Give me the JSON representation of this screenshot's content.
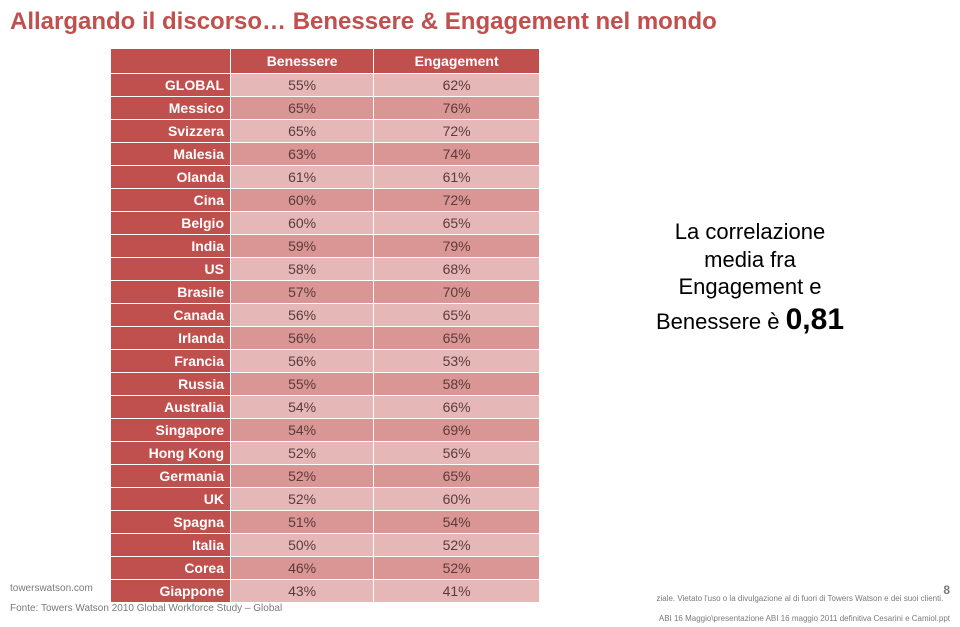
{
  "title": "Allargando il discorso… Benessere & Engagement nel mondo",
  "table": {
    "col1_header": "Benessere",
    "col2_header": "Engagement",
    "rows": [
      {
        "label": "GLOBAL",
        "v1": "55%",
        "v2": "62%"
      },
      {
        "label": "Messico",
        "v1": "65%",
        "v2": "76%"
      },
      {
        "label": "Svizzera",
        "v1": "65%",
        "v2": "72%"
      },
      {
        "label": "Malesia",
        "v1": "63%",
        "v2": "74%"
      },
      {
        "label": "Olanda",
        "v1": "61%",
        "v2": "61%"
      },
      {
        "label": "Cina",
        "v1": "60%",
        "v2": "72%"
      },
      {
        "label": "Belgio",
        "v1": "60%",
        "v2": "65%"
      },
      {
        "label": "India",
        "v1": "59%",
        "v2": "79%"
      },
      {
        "label": "US",
        "v1": "58%",
        "v2": "68%"
      },
      {
        "label": "Brasile",
        "v1": "57%",
        "v2": "70%"
      },
      {
        "label": "Canada",
        "v1": "56%",
        "v2": "65%"
      },
      {
        "label": "Irlanda",
        "v1": "56%",
        "v2": "65%"
      },
      {
        "label": "Francia",
        "v1": "56%",
        "v2": "53%"
      },
      {
        "label": "Russia",
        "v1": "55%",
        "v2": "58%"
      },
      {
        "label": "Australia",
        "v1": "54%",
        "v2": "66%"
      },
      {
        "label": "Singapore",
        "v1": "54%",
        "v2": "69%"
      },
      {
        "label": "Hong Kong",
        "v1": "52%",
        "v2": "56%"
      },
      {
        "label": "Germania",
        "v1": "52%",
        "v2": "65%"
      },
      {
        "label": "UK",
        "v1": "52%",
        "v2": "60%"
      },
      {
        "label": "Spagna",
        "v1": "51%",
        "v2": "54%"
      },
      {
        "label": "Italia",
        "v1": "50%",
        "v2": "52%"
      },
      {
        "label": "Corea",
        "v1": "46%",
        "v2": "52%"
      },
      {
        "label": "Giappone",
        "v1": "43%",
        "v2": "41%"
      }
    ]
  },
  "note_line1": "La correlazione",
  "note_line2": "media fra",
  "note_line3": "Engagement e",
  "note_line4_prefix": "Benessere è ",
  "note_big": "0,81",
  "footer_site": "towerswatson.com",
  "footer_source": "Fonte: Towers Watson 2010 Global Workforce Study – Global",
  "footer_legal1": "ziale. Vietato l'uso o la divulgazione al di fuori di Towers Watson e dei suoi clienti.",
  "footer_page": "8",
  "footer_path": "ABI 16 Maggio\\presentazione ABI 16 maggio 2011 definitiva Cesarini e Camiol.ppt"
}
